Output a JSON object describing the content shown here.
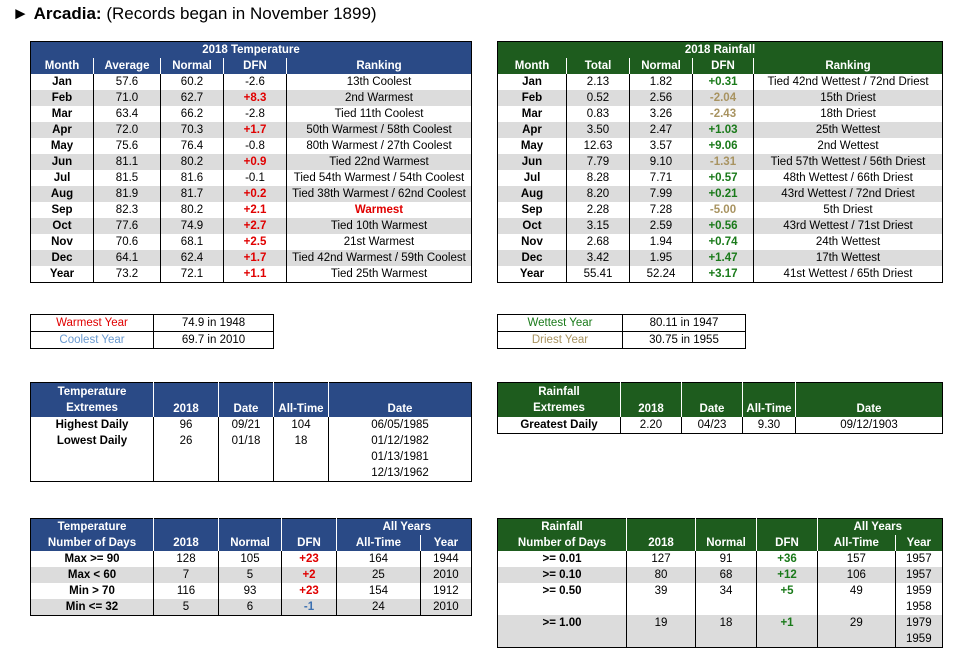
{
  "header": {
    "arrow": "►",
    "station": "Arcadia:",
    "note": "(Records began in November 1899)"
  },
  "temp": {
    "title": "2018 Temperature",
    "cols": [
      "Month",
      "Average",
      "Normal",
      "DFN",
      "Ranking"
    ],
    "rows": [
      [
        "Jan",
        "57.6",
        "60.2",
        "-2.6",
        "13th Coolest"
      ],
      [
        "Feb",
        "71.0",
        "62.7",
        "+8.3",
        "2nd Warmest"
      ],
      [
        "Mar",
        "63.4",
        "66.2",
        "-2.8",
        "Tied 11th Coolest"
      ],
      [
        "Apr",
        "72.0",
        "70.3",
        "+1.7",
        "50th Warmest / 58th Coolest"
      ],
      [
        "May",
        "75.6",
        "76.4",
        "-0.8",
        "80th Warmest / 27th Coolest"
      ],
      [
        "Jun",
        "81.1",
        "80.2",
        "+0.9",
        "Tied 22nd Warmest"
      ],
      [
        "Jul",
        "81.5",
        "81.6",
        "-0.1",
        "Tied 54th Warmest / 54th Coolest"
      ],
      [
        "Aug",
        "81.9",
        "81.7",
        "+0.2",
        "Tied 38th Warmest / 62nd Coolest"
      ],
      [
        "Sep",
        "82.3",
        "80.2",
        "+2.1",
        "Warmest"
      ],
      [
        "Oct",
        "77.6",
        "74.9",
        "+2.7",
        "Tied 10th Warmest"
      ],
      [
        "Nov",
        "70.6",
        "68.1",
        "+2.5",
        "21st Warmest"
      ],
      [
        "Dec",
        "64.1",
        "62.4",
        "+1.7",
        "Tied 42nd Warmest / 59th Coolest"
      ],
      [
        "Year",
        "73.2",
        "72.1",
        "+1.1",
        "Tied 25th Warmest"
      ]
    ]
  },
  "rain": {
    "title": "2018 Rainfall",
    "cols": [
      "Month",
      "Total",
      "Normal",
      "DFN",
      "Ranking"
    ],
    "rows": [
      [
        "Jan",
        "2.13",
        "1.82",
        "+0.31",
        "Tied 42nd Wettest / 72nd Driest"
      ],
      [
        "Feb",
        "0.52",
        "2.56",
        "-2.04",
        "15th Driest"
      ],
      [
        "Mar",
        "0.83",
        "3.26",
        "-2.43",
        "18th Driest"
      ],
      [
        "Apr",
        "3.50",
        "2.47",
        "+1.03",
        "25th Wettest"
      ],
      [
        "May",
        "12.63",
        "3.57",
        "+9.06",
        "2nd Wettest"
      ],
      [
        "Jun",
        "7.79",
        "9.10",
        "-1.31",
        "Tied 57th Wettest / 56th Driest"
      ],
      [
        "Jul",
        "8.28",
        "7.71",
        "+0.57",
        "48th Wettest / 66th Driest"
      ],
      [
        "Aug",
        "8.20",
        "7.99",
        "+0.21",
        "43rd Wettest / 72nd Driest"
      ],
      [
        "Sep",
        "2.28",
        "7.28",
        "-5.00",
        "5th Driest"
      ],
      [
        "Oct",
        "3.15",
        "2.59",
        "+0.56",
        "43rd Wettest / 71st Driest"
      ],
      [
        "Nov",
        "2.68",
        "1.94",
        "+0.74",
        "24th Wettest"
      ],
      [
        "Dec",
        "3.42",
        "1.95",
        "+1.47",
        "17th Wettest"
      ],
      [
        "Year",
        "55.41",
        "52.24",
        "+3.17",
        "41st Wettest / 65th Driest"
      ]
    ]
  },
  "temp_years": {
    "warm_label": "Warmest Year",
    "warm_val": "74.9 in 1948",
    "cool_label": "Coolest Year",
    "cool_val": "69.7 in 2010"
  },
  "rain_years": {
    "wet_label": "Wettest Year",
    "wet_val": "80.11 in 1947",
    "dry_label": "Driest Year",
    "dry_val": "30.75 in 1955"
  },
  "temp_ext": {
    "h1": "Temperature",
    "h2": "Extremes",
    "c2018": "2018",
    "cdate": "Date",
    "call": "All-Time",
    "cdate2": "Date",
    "rows": [
      {
        "label": "Highest Daily",
        "v": "96",
        "d": "09/21",
        "a": "104",
        "ad": "06/05/1985"
      },
      {
        "label": "Lowest Daily",
        "v": "26",
        "d": "01/18",
        "a": "18",
        "ad": "01/12/1982"
      },
      {
        "label": "",
        "v": "",
        "d": "",
        "a": "",
        "ad": "01/13/1981"
      },
      {
        "label": "",
        "v": "",
        "d": "",
        "a": "",
        "ad": "12/13/1962"
      }
    ]
  },
  "rain_ext": {
    "h1": "Rainfall",
    "h2": "Extremes",
    "c2018": "2018",
    "cdate": "Date",
    "call": "All-Time",
    "cdate2": "Date",
    "rows": [
      {
        "label": "Greatest Daily",
        "v": "2.20",
        "d": "04/23",
        "a": "9.30",
        "ad": "09/12/1903"
      }
    ]
  },
  "temp_days": {
    "h1": "Temperature",
    "h2": "Number of Days",
    "allyears": "All Years",
    "c2018": "2018",
    "cnormal": "Normal",
    "cdfn": "DFN",
    "call": "All-Time",
    "cyear": "Year",
    "rows": [
      [
        "Max >= 90",
        "128",
        "105",
        "+23",
        "164",
        "1944"
      ],
      [
        "Max < 60",
        "7",
        "5",
        "+2",
        "25",
        "2010"
      ],
      [
        "Min > 70",
        "116",
        "93",
        "+23",
        "154",
        "1912"
      ],
      [
        "Min <= 32",
        "5",
        "6",
        "-1",
        "24",
        "2010"
      ]
    ]
  },
  "rain_days": {
    "h1": "Rainfall",
    "h2": "Number of Days",
    "allyears": "All Years",
    "c2018": "2018",
    "cnormal": "Normal",
    "cdfn": "DFN",
    "call": "All-Time",
    "cyear": "Year",
    "rows": [
      [
        ">= 0.01",
        "127",
        "91",
        "+36",
        "157",
        "1957",
        ""
      ],
      [
        ">= 0.10",
        "80",
        "68",
        "+12",
        "106",
        "1957",
        ""
      ],
      [
        ">= 0.50",
        "39",
        "34",
        "+5",
        "49",
        "1959",
        "1958"
      ],
      [
        ">= 1.00",
        "19",
        "18",
        "+1",
        "29",
        "1979",
        "1959"
      ]
    ]
  },
  "colors": {
    "temp_header": "#2a4a86",
    "rain_header": "#1e5c1e",
    "positive_temp": "#e00000",
    "negative_temp": "#000000",
    "positive_rain": "#1a7a1a",
    "negative_rain": "#a89360"
  }
}
